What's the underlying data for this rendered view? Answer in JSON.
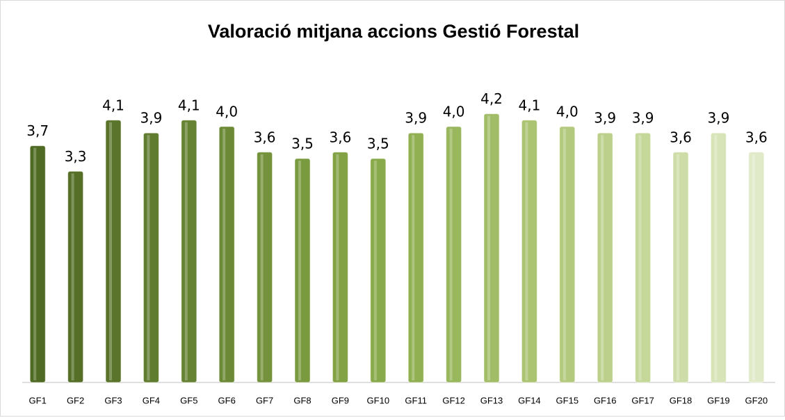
{
  "chart_data": {
    "type": "bar",
    "title": "Valoració mitjana accions Gestió Forestal",
    "categories": [
      "GF1",
      "GF2",
      "GF3",
      "GF4",
      "GF5",
      "GF6",
      "GF7",
      "GF8",
      "GF9",
      "GF10",
      "GF11",
      "GF12",
      "GF13",
      "GF14",
      "GF15",
      "GF16",
      "GF17",
      "GF18",
      "GF19",
      "GF20"
    ],
    "values": [
      3.7,
      3.3,
      4.1,
      3.9,
      4.1,
      4.0,
      3.6,
      3.5,
      3.6,
      3.5,
      3.9,
      4.0,
      4.2,
      4.1,
      4.0,
      3.9,
      3.9,
      3.6,
      3.9,
      3.6
    ],
    "value_labels": [
      "3,7",
      "3,3",
      "4,1",
      "3,9",
      "4,1",
      "4,0",
      "3,6",
      "3,5",
      "3,6",
      "3,5",
      "3,9",
      "4,0",
      "4,2",
      "4,1",
      "4,0",
      "3,9",
      "3,9",
      "3,6",
      "3,9",
      "3,6"
    ],
    "colors": [
      "#4f6a22",
      "#556f27",
      "#5a752b",
      "#607c2f",
      "#668333",
      "#6c8a36",
      "#74923b",
      "#7a9a3f",
      "#82a244",
      "#89aa4a",
      "#91b052",
      "#99b75c",
      "#a2bd67",
      "#abc472",
      "#b3ca7e",
      "#bcd08b",
      "#c5d799",
      "#cedda8",
      "#d7e4b8",
      "#e0eac8"
    ],
    "ylim": [
      0,
      5
    ]
  }
}
